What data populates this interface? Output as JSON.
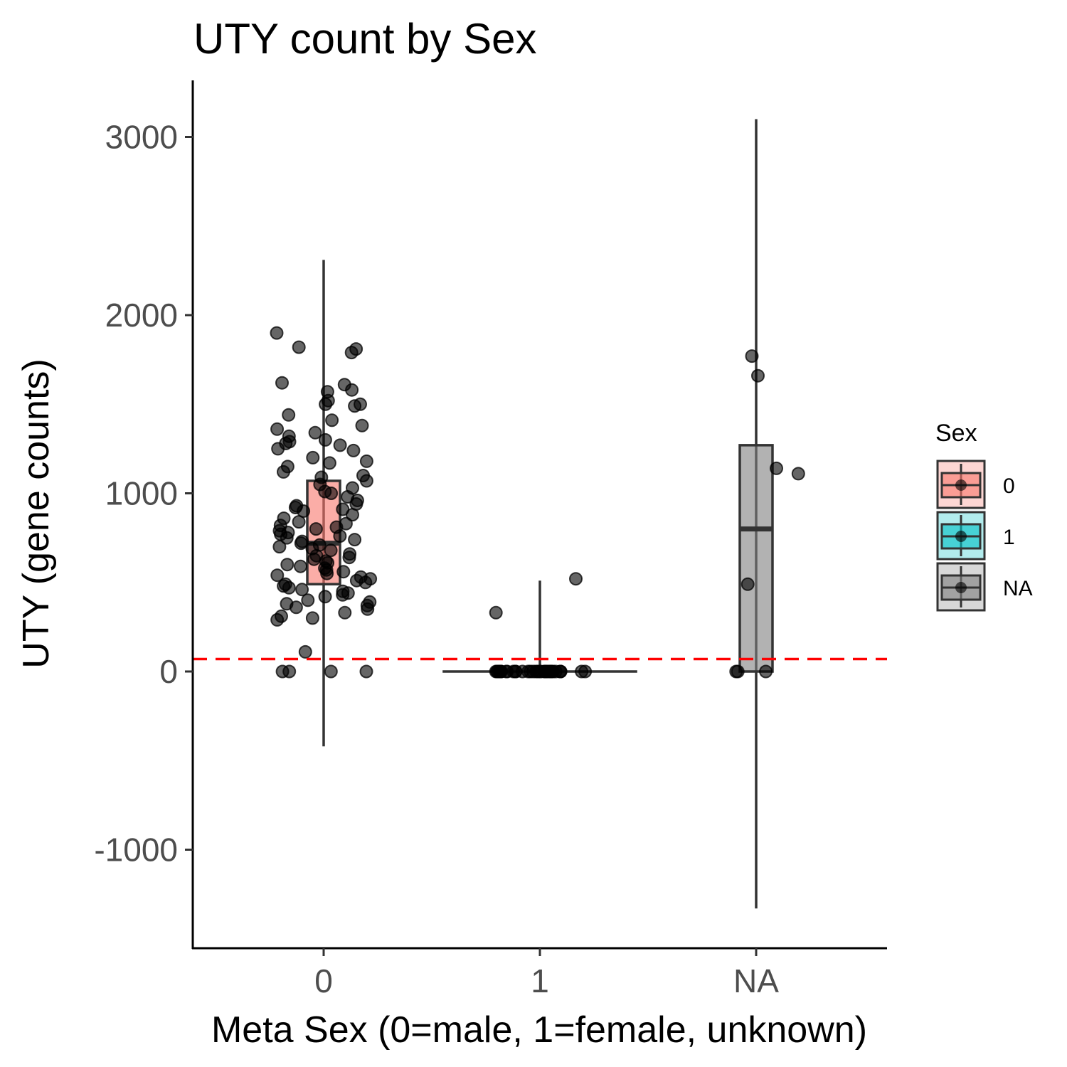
{
  "chart_data": {
    "type": "box",
    "title": "UTY count by Sex",
    "xlabel": "Meta Sex (0=male, 1=female, unknown)",
    "ylabel": "UTY (gene counts)",
    "categories": [
      "0",
      "1",
      "NA"
    ],
    "ylim": [
      -1530,
      3330
    ],
    "yticks": [
      -1000,
      0,
      1000,
      2000,
      3000
    ],
    "ytick_labels": [
      "-1000",
      "0",
      "1000",
      "2000",
      "3000"
    ],
    "grid": false,
    "threshold_line": {
      "y": 70,
      "color": "#ff0000",
      "style": "dashed"
    },
    "legend": {
      "title": "Sex",
      "position": "right",
      "items": [
        {
          "label": "0",
          "color": "#f8766d"
        },
        {
          "label": "1",
          "color": "#00bfc4"
        },
        {
          "label": "NA",
          "color": "#7f7f7f"
        }
      ]
    },
    "boxes": [
      {
        "category": "0",
        "color": "#f8766d",
        "q1": 490,
        "median": 720,
        "q3": 1070,
        "whisker_low": -420,
        "whisker_high": 2310
      },
      {
        "category": "1",
        "color": "#00bfc4",
        "q1": 0,
        "median": 0,
        "q3": 0,
        "whisker_low": 0,
        "whisker_high": 510
      },
      {
        "category": "NA",
        "color": "#7f7f7f",
        "q1": 0,
        "median": 800,
        "q3": 1270,
        "whisker_low": -1330,
        "whisker_high": 3100
      }
    ],
    "points": [
      {
        "category": "0",
        "values": [
          1900,
          1820,
          1810,
          1790,
          1620,
          1610,
          1580,
          1570,
          1520,
          1500,
          1500,
          1490,
          1440,
          1410,
          1380,
          1360,
          1340,
          1320,
          1300,
          1290,
          1280,
          1270,
          1250,
          1240,
          1200,
          1180,
          1170,
          1150,
          1120,
          1100,
          1090,
          1070,
          1050,
          1030,
          1010,
          1000,
          980,
          960,
          940,
          930,
          920,
          910,
          900,
          880,
          860,
          840,
          830,
          820,
          810,
          800,
          790,
          780,
          770,
          760,
          750,
          740,
          730,
          720,
          710,
          700,
          690,
          680,
          660,
          650,
          640,
          630,
          620,
          610,
          600,
          590,
          580,
          570,
          560,
          550,
          540,
          530,
          520,
          510,
          500,
          490,
          480,
          470,
          460,
          450,
          440,
          430,
          420,
          400,
          390,
          380,
          370,
          360,
          350,
          330,
          310,
          300,
          290,
          110,
          0,
          0,
          0,
          0
        ]
      },
      {
        "category": "1",
        "values": [
          520,
          330,
          0,
          0,
          0,
          0,
          0,
          0,
          0,
          0,
          0,
          0,
          0,
          0,
          0,
          0,
          0,
          0,
          0,
          0,
          0,
          0,
          0,
          0,
          0,
          0,
          0,
          0,
          0,
          0,
          0,
          0,
          0,
          0,
          0,
          0,
          0,
          0,
          0,
          0
        ]
      },
      {
        "category": "NA",
        "values": [
          1770,
          1660,
          1140,
          1110,
          490,
          0,
          0,
          0
        ]
      }
    ]
  }
}
